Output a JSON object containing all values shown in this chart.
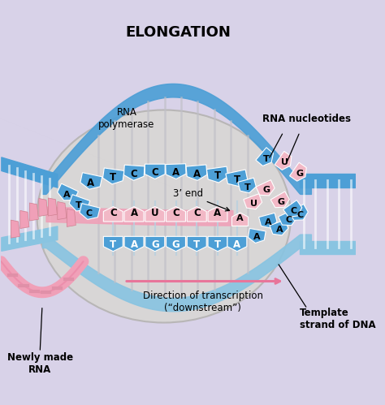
{
  "title": "ELONGATION",
  "bg_color": "#d8d2e8",
  "blob_color": "#d0cece",
  "blob_edge": "#b0b0b0",
  "blue_dark": "#4d9fd6",
  "blue_light": "#89c4e1",
  "blue_mid": "#6bb8e0",
  "pink_light": "#f2b8c6",
  "pink_dark": "#e8759a",
  "pink_med": "#f0a0b8",
  "white": "#ffffff",
  "label_rna_pol": "RNA\npolymerase",
  "label_3end": "3’ end",
  "label_direction": "Direction of transcription\n(“downstream”)",
  "label_rna_nuc": "RNA nucleotides",
  "label_template": "Template\nstrand of DNA",
  "label_newly": "Newly made\nRNA",
  "title_fs": 13,
  "ann_fs": 8.5,
  "tile_fs": 9,
  "figsize": [
    4.74,
    4.99
  ],
  "dpi": 100,
  "top_dna_seq": [
    "A",
    "T",
    "C",
    "C",
    "A",
    "A",
    "T",
    "T"
  ],
  "rna_seq": [
    "C",
    "A",
    "U",
    "C",
    "C",
    "A"
  ],
  "tmpl_seq": [
    "T",
    "A",
    "G",
    "G",
    "T",
    "T",
    "A"
  ],
  "left_top_seq": [
    "A",
    "T",
    "C"
  ],
  "incoming_rna": [
    "T",
    "U",
    "G",
    "G",
    "C"
  ],
  "incoming_dna": [
    "A",
    "A",
    "C",
    "C"
  ]
}
